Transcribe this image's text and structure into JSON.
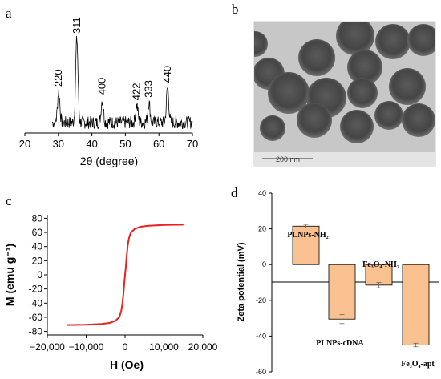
{
  "panel_labels": {
    "a": "a",
    "b": "b",
    "c": "c",
    "d": "d"
  },
  "tem": {
    "scale_label": "200 nm"
  },
  "chart_data": [
    {
      "panel": "a",
      "type": "line",
      "xlabel": "2θ (degree)",
      "ylabel": "",
      "xlim": [
        20,
        70
      ],
      "xticks": [
        20,
        30,
        40,
        50,
        60,
        70
      ],
      "peaks": [
        {
          "x": 30.1,
          "y": 0.42,
          "label": "220"
        },
        {
          "x": 35.5,
          "y": 1.0,
          "label": "311"
        },
        {
          "x": 43.1,
          "y": 0.33,
          "label": "400"
        },
        {
          "x": 53.4,
          "y": 0.27,
          "label": "422"
        },
        {
          "x": 57.0,
          "y": 0.3,
          "label": "333"
        },
        {
          "x": 62.6,
          "y": 0.46,
          "label": "440"
        }
      ],
      "baseline": 0.08,
      "line_color": "#000000"
    },
    {
      "panel": "c",
      "type": "line",
      "xlabel": "H (Oe)",
      "ylabel": "M (emu g⁻¹)",
      "xlim": [
        -20000,
        20000
      ],
      "ylim": [
        -80,
        80
      ],
      "xticks": [
        -20000,
        -10000,
        0,
        10000,
        20000
      ],
      "xtick_labels": [
        "−20,000",
        "−10,000",
        "0",
        "10,000",
        "20,000"
      ],
      "yticks": [
        -80,
        -60,
        -40,
        -20,
        0,
        20,
        40,
        60,
        80
      ],
      "series": [
        {
          "x": [
            -15000,
            -10000,
            -6000,
            -4000,
            -2500,
            -1500,
            -1000,
            -700,
            -400,
            -200,
            0,
            200,
            400,
            700,
            1000,
            1500,
            2500,
            4000,
            6000,
            10000,
            15000
          ],
          "y": [
            -71,
            -70.5,
            -69.5,
            -68,
            -65,
            -60,
            -52,
            -42,
            -25,
            -12,
            0,
            12,
            25,
            42,
            52,
            60,
            65,
            68,
            69.5,
            70.5,
            71
          ]
        }
      ],
      "line_color": "#e8221c"
    },
    {
      "panel": "d",
      "type": "bar",
      "ylabel": "Zeta potential (mV)",
      "ylim": [
        -60,
        40
      ],
      "yticks": [
        -60,
        -40,
        -20,
        0,
        20,
        40
      ],
      "categories": [
        "PLNPs-NH2",
        "PLNPs-cDNA",
        "Fe3O4-NH2",
        "Fe3O4-apt"
      ],
      "category_labels": [
        "PLNPs-NH₂",
        "PLNPs-cDNA",
        "Fe₃O₄-NH₂",
        "Fe₃O₄-apt"
      ],
      "values": [
        21.5,
        -30.5,
        -11.5,
        -45
      ],
      "errors": [
        1.0,
        2.5,
        1.5,
        1.0
      ],
      "bar_color": "#f9c18f"
    }
  ]
}
